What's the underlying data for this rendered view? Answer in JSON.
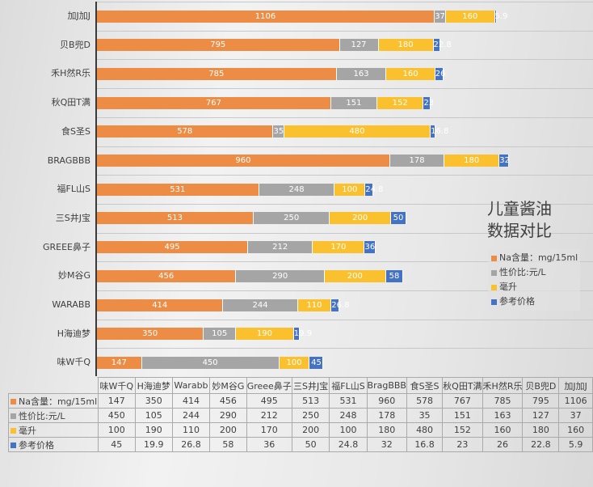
{
  "chart_data": {
    "type": "bar",
    "orientation": "horizontal",
    "stacked": true,
    "title": "儿童酱油数据对比",
    "categories": [
      "味W千Q",
      "H海迪梦",
      "WARABB",
      "妙M谷G",
      "GREEE鼻子",
      "三S井J宝",
      "福FL山S",
      "BRAGBBB",
      "食S圣S",
      "秋Q田T满",
      "禾H然R乐",
      "贝B兜D",
      "加J加J"
    ],
    "table_categories": [
      "味W千Q",
      "H海迪梦",
      "Warabb",
      "妙M谷G",
      "Greee鼻子",
      "三S井J宝",
      "福FL山S",
      "BragBBB",
      "食S圣S",
      "秋Q田T满",
      "禾H然R乐",
      "贝B兜D",
      "加J加J"
    ],
    "series": [
      {
        "name": "Na含量：mg/15ml",
        "color": "#ED8C45",
        "values": [
          147,
          350,
          414,
          456,
          495,
          513,
          531,
          960,
          578,
          767,
          785,
          795,
          1106
        ]
      },
      {
        "name": "性价比:元/L",
        "color": "#A5A5A5",
        "values": [
          450,
          105,
          244,
          290,
          212,
          250,
          248,
          178,
          35,
          151,
          163,
          127,
          37
        ]
      },
      {
        "name": "毫升",
        "color": "#FBC02D",
        "values": [
          100,
          190,
          110,
          200,
          170,
          200,
          100,
          180,
          480,
          152,
          160,
          180,
          160
        ]
      },
      {
        "name": "参考价格",
        "color": "#4472C4",
        "values": [
          45,
          19.9,
          26.8,
          58,
          36,
          50,
          24.8,
          32,
          16.8,
          23,
          26,
          22.8,
          5.9
        ]
      }
    ],
    "xlabel": "",
    "ylabel": "",
    "grid": true,
    "legend_position": "right",
    "data_table": true
  },
  "title_line1": "儿童酱油",
  "title_line2": "数据对比",
  "legend": {
    "items": [
      "Na含量：mg/15ml",
      "性价比:元/L",
      "毫升",
      "参考价格"
    ]
  },
  "table": {
    "row_headers": [
      "Na含量：mg/15ml",
      "性价比:元/L",
      "毫升",
      "参考价格"
    ]
  }
}
